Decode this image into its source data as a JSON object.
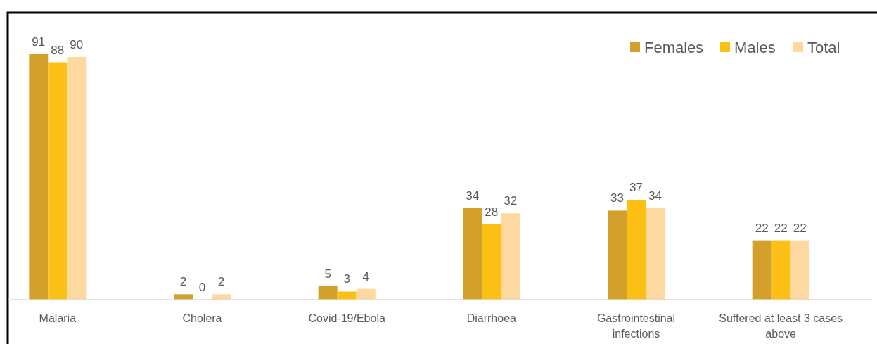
{
  "chart_data": {
    "type": "bar",
    "categories": [
      "Malaria",
      "Cholera",
      "Covid-19/Ebola",
      "Diarrhoea",
      "Gastrointestinal infections",
      "Suffered at least 3 cases above"
    ],
    "series": [
      {
        "name": "Females",
        "color": "#d4a02c",
        "values": [
          91,
          2,
          5,
          34,
          33,
          22
        ]
      },
      {
        "name": "Males",
        "color": "#fcbf14",
        "values": [
          88,
          0,
          3,
          28,
          37,
          22
        ]
      },
      {
        "name": "Total",
        "color": "#fdd9a0",
        "values": [
          90,
          2,
          4,
          32,
          34,
          22
        ]
      }
    ],
    "data_labels": true,
    "legend": "top right"
  }
}
